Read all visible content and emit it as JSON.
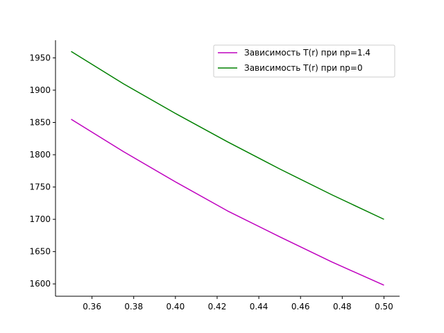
{
  "chart_data": {
    "type": "line",
    "title": "",
    "xlabel": "",
    "ylabel": "",
    "xlim": [
      0.3425,
      0.5075
    ],
    "ylim": [
      1580.9,
      1977.3
    ],
    "grid": false,
    "legend_position": "top-right",
    "x_ticks": [
      0.36,
      0.38,
      0.4,
      0.42,
      0.44,
      0.46,
      0.48,
      0.5
    ],
    "x_tick_labels": [
      "0.36",
      "0.38",
      "0.40",
      "0.42",
      "0.44",
      "0.46",
      "0.48",
      "0.50"
    ],
    "y_ticks": [
      1600,
      1650,
      1700,
      1750,
      1800,
      1850,
      1900,
      1950
    ],
    "y_tick_labels": [
      "1600",
      "1650",
      "1700",
      "1750",
      "1800",
      "1850",
      "1900",
      "1950"
    ],
    "x": [
      0.35,
      0.375,
      0.4,
      0.425,
      0.45,
      0.475,
      0.5
    ],
    "series": [
      {
        "name": "Зависимость T(r) при np=1.4",
        "color": "#bf00bf",
        "values": [
          1855,
          1805,
          1758,
          1713,
          1673,
          1634,
          1598
        ]
      },
      {
        "name": "Зависимость T(r) при np=0",
        "color": "#008000",
        "values": [
          1960,
          1910,
          1864,
          1820,
          1778,
          1738,
          1700
        ]
      }
    ]
  }
}
